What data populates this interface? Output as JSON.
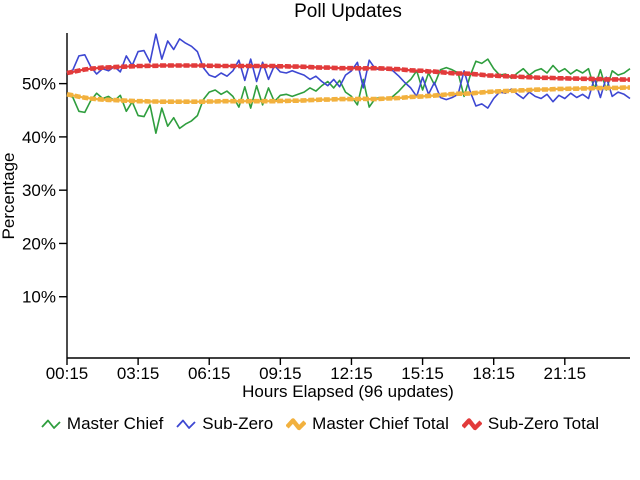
{
  "chart_data": {
    "type": "line",
    "title": "Poll Updates",
    "xlabel": "Hours Elapsed (96 updates)",
    "ylabel": "Percentage",
    "n_updates": 96,
    "x_tick_labels": [
      "00:15",
      "03:15",
      "06:15",
      "09:15",
      "12:15",
      "15:15",
      "18:15",
      "21:15"
    ],
    "x_tick_updates": [
      1,
      13,
      25,
      37,
      49,
      61,
      73,
      85
    ],
    "y_tick_labels": [
      "10%",
      "20%",
      "30%",
      "40%",
      "50%"
    ],
    "y_ticks": [
      10,
      20,
      30,
      40,
      50
    ],
    "ylim": [
      -1.5,
      59.5
    ],
    "grid": false,
    "legend_position": "bottom",
    "axis_color": "#000000",
    "background_color": "#ffffff",
    "series": [
      {
        "name": "Master Chief",
        "color": "#2f9e3e",
        "style": "thin",
        "values": [
          48.0,
          47.4,
          44.8,
          44.6,
          46.8,
          48.2,
          47.2,
          47.6,
          46.8,
          47.8,
          44.8,
          46.6,
          44.0,
          43.8,
          46.0,
          40.7,
          45.4,
          42.0,
          43.6,
          41.6,
          42.4,
          43.0,
          44.0,
          47.0,
          48.4,
          48.8,
          48.0,
          48.6,
          47.6,
          45.6,
          49.4,
          45.4,
          49.6,
          46.0,
          49.2,
          46.6,
          47.8,
          48.0,
          47.6,
          48.0,
          48.4,
          49.2,
          48.6,
          49.6,
          50.4,
          49.2,
          50.6,
          48.4,
          47.6,
          46.0,
          50.8,
          45.6,
          47.2,
          47.4,
          47.2,
          47.6,
          48.6,
          49.8,
          50.8,
          52.4,
          48.8,
          52.0,
          49.8,
          52.6,
          53.0,
          52.6,
          52.0,
          47.6,
          51.4,
          54.2,
          53.8,
          54.6,
          52.8,
          51.6,
          51.8,
          51.0,
          52.0,
          52.8,
          51.6,
          52.4,
          52.8,
          52.0,
          53.4,
          52.2,
          52.8,
          51.8,
          52.6,
          52.0,
          52.8,
          49.0,
          52.6,
          48.8,
          52.4,
          51.6,
          52.0,
          52.8
        ]
      },
      {
        "name": "Sub-Zero",
        "color": "#3d47d2",
        "style": "thin",
        "values": [
          52.0,
          52.6,
          55.2,
          55.4,
          53.2,
          51.8,
          52.8,
          52.4,
          53.2,
          52.2,
          55.2,
          53.4,
          56.0,
          56.2,
          54.0,
          59.3,
          54.6,
          58.0,
          56.4,
          58.4,
          57.6,
          57.0,
          56.0,
          53.0,
          51.6,
          51.2,
          52.0,
          51.4,
          52.4,
          54.4,
          50.6,
          54.6,
          50.4,
          54.0,
          50.8,
          53.4,
          52.2,
          52.0,
          52.4,
          52.0,
          51.6,
          50.8,
          51.4,
          50.4,
          49.6,
          50.8,
          49.4,
          51.6,
          52.4,
          54.0,
          49.2,
          54.4,
          52.8,
          52.6,
          52.8,
          52.4,
          51.4,
          50.2,
          49.2,
          47.6,
          51.2,
          48.0,
          50.2,
          47.4,
          47.0,
          47.4,
          48.0,
          52.4,
          48.6,
          45.8,
          46.2,
          45.4,
          47.2,
          48.4,
          48.2,
          49.0,
          48.0,
          47.2,
          48.4,
          47.6,
          47.2,
          48.0,
          46.6,
          47.8,
          47.2,
          48.2,
          47.4,
          48.0,
          47.2,
          51.0,
          47.4,
          51.2,
          47.6,
          48.4,
          48.0,
          47.2
        ]
      },
      {
        "name": "Master Chief Total",
        "color": "#f2b13e",
        "style": "thick",
        "values": [
          48.0,
          47.8,
          47.55,
          47.35,
          47.2,
          47.1,
          47.0,
          46.95,
          46.9,
          46.85,
          46.8,
          46.75,
          46.7,
          46.7,
          46.65,
          46.65,
          46.6,
          46.6,
          46.6,
          46.6,
          46.6,
          46.6,
          46.6,
          46.6,
          46.65,
          46.65,
          46.7,
          46.7,
          46.7,
          46.7,
          46.7,
          46.7,
          46.7,
          46.7,
          46.7,
          46.7,
          46.75,
          46.75,
          46.8,
          46.8,
          46.85,
          46.9,
          46.95,
          47.0,
          47.0,
          47.05,
          47.1,
          47.1,
          47.1,
          47.1,
          47.15,
          47.1,
          47.1,
          47.15,
          47.2,
          47.25,
          47.3,
          47.4,
          47.5,
          47.55,
          47.6,
          47.7,
          47.75,
          47.85,
          47.95,
          48.05,
          48.1,
          48.1,
          48.15,
          48.25,
          48.35,
          48.45,
          48.5,
          48.55,
          48.6,
          48.65,
          48.7,
          48.75,
          48.8,
          48.85,
          48.9,
          48.9,
          48.95,
          49.0,
          49.0,
          49.05,
          49.05,
          49.1,
          49.1,
          49.15,
          49.15,
          49.2,
          49.2,
          49.2,
          49.25,
          49.25
        ]
      },
      {
        "name": "Sub-Zero Total",
        "color": "#e23b3b",
        "style": "thick",
        "values": [
          52.0,
          52.2,
          52.45,
          52.65,
          52.8,
          52.9,
          53.0,
          53.05,
          53.1,
          53.15,
          53.2,
          53.25,
          53.3,
          53.3,
          53.35,
          53.35,
          53.4,
          53.4,
          53.4,
          53.4,
          53.4,
          53.4,
          53.4,
          53.4,
          53.35,
          53.35,
          53.3,
          53.3,
          53.3,
          53.3,
          53.3,
          53.3,
          53.3,
          53.3,
          53.3,
          53.3,
          53.25,
          53.25,
          53.2,
          53.2,
          53.15,
          53.1,
          53.05,
          53.0,
          53.0,
          52.95,
          52.9,
          52.9,
          52.9,
          52.9,
          52.85,
          52.9,
          52.9,
          52.85,
          52.8,
          52.75,
          52.7,
          52.6,
          52.5,
          52.45,
          52.4,
          52.3,
          52.25,
          52.15,
          52.05,
          51.95,
          51.9,
          51.9,
          51.85,
          51.75,
          51.65,
          51.55,
          51.5,
          51.45,
          51.4,
          51.35,
          51.3,
          51.25,
          51.2,
          51.15,
          51.1,
          51.1,
          51.05,
          51.0,
          51.0,
          50.95,
          50.95,
          50.9,
          50.9,
          50.85,
          50.85,
          50.8,
          50.8,
          50.8,
          50.75,
          50.75
        ]
      }
    ]
  }
}
